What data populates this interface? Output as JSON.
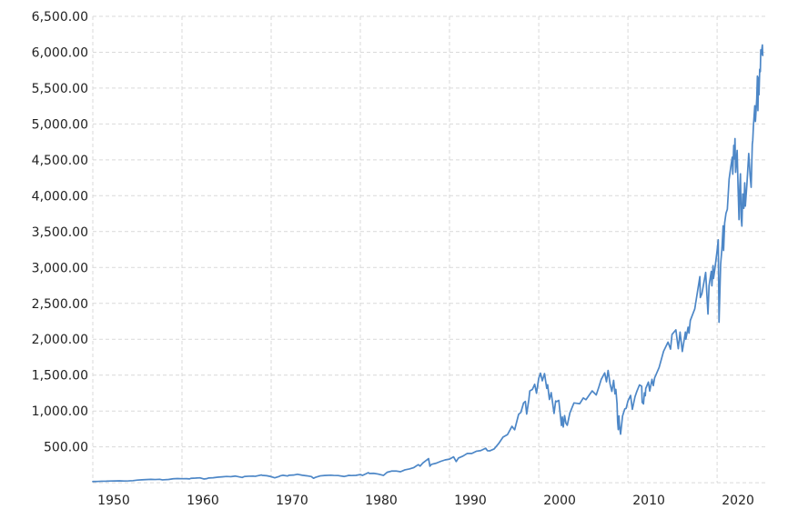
{
  "chart_data": {
    "type": "line",
    "title": "",
    "background": "#ffffff",
    "text_color": "#222222",
    "grid": {
      "color": "#d9d9d9",
      "dash": "4 3"
    },
    "series_color": "#4d87c7",
    "x_axis": {
      "range": [
        1950,
        2025.4
      ],
      "gridline_years": [
        1950,
        1960,
        1970,
        1980,
        1990,
        2000,
        2010,
        2020
      ],
      "tick_labels": [
        "1950",
        "1960",
        "1970",
        "1980",
        "1990",
        "2000",
        "2010",
        "2020"
      ]
    },
    "y_axis": {
      "range": [
        0,
        6500
      ],
      "gridline_values": [
        0,
        500,
        1000,
        1500,
        2000,
        2500,
        3000,
        3500,
        4000,
        4500,
        5000,
        5500,
        6000,
        6500
      ],
      "ticks": [
        {
          "value": 6500,
          "label": "6,500.00"
        },
        {
          "value": 6000,
          "label": "6,000.00"
        },
        {
          "value": 5500,
          "label": "5,500.00"
        },
        {
          "value": 5000,
          "label": "5,000.00"
        },
        {
          "value": 4500,
          "label": "4,500.00"
        },
        {
          "value": 4000,
          "label": "4,000.00"
        },
        {
          "value": 3500,
          "label": "3,500.00"
        },
        {
          "value": 3000,
          "label": "3,000.00"
        },
        {
          "value": 2500,
          "label": "2,500.00"
        },
        {
          "value": 2000,
          "label": "2,000.00"
        },
        {
          "value": 1500,
          "label": "1,500.00"
        },
        {
          "value": 1000,
          "label": "1,000.00"
        },
        {
          "value": 500,
          "label": "500.00"
        }
      ]
    },
    "points": [
      [
        1950.0,
        16.7
      ],
      [
        1950.5,
        17.7
      ],
      [
        1951.0,
        21.2
      ],
      [
        1951.5,
        21.8
      ],
      [
        1952.0,
        24.1
      ],
      [
        1952.5,
        25.0
      ],
      [
        1953.0,
        26.4
      ],
      [
        1953.5,
        24.3
      ],
      [
        1954.0,
        26.1
      ],
      [
        1954.5,
        29.2
      ],
      [
        1955.0,
        36.6
      ],
      [
        1955.5,
        41.0
      ],
      [
        1956.0,
        43.8
      ],
      [
        1956.5,
        47.0
      ],
      [
        1957.0,
        44.7
      ],
      [
        1957.5,
        47.9
      ],
      [
        1957.8,
        40.3
      ],
      [
        1958.0,
        41.7
      ],
      [
        1958.5,
        45.3
      ],
      [
        1959.0,
        55.4
      ],
      [
        1959.5,
        58.7
      ],
      [
        1960.0,
        55.6
      ],
      [
        1960.5,
        56.9
      ],
      [
        1960.85,
        53.4
      ],
      [
        1961.0,
        61.8
      ],
      [
        1961.5,
        64.6
      ],
      [
        1962.0,
        68.8
      ],
      [
        1962.45,
        52.3
      ],
      [
        1962.75,
        56.5
      ],
      [
        1963.0,
        66.2
      ],
      [
        1963.5,
        69.4
      ],
      [
        1964.0,
        77.0
      ],
      [
        1964.5,
        81.7
      ],
      [
        1965.0,
        87.6
      ],
      [
        1965.45,
        84.1
      ],
      [
        1966.0,
        92.9
      ],
      [
        1966.75,
        73.2
      ],
      [
        1967.0,
        86.6
      ],
      [
        1967.5,
        90.6
      ],
      [
        1968.0,
        92.2
      ],
      [
        1968.2,
        89.1
      ],
      [
        1968.9,
        108.4
      ],
      [
        1969.0,
        103.0
      ],
      [
        1969.5,
        97.7
      ],
      [
        1970.0,
        85.0
      ],
      [
        1970.4,
        69.3
      ],
      [
        1970.9,
        87.2
      ],
      [
        1971.0,
        95.9
      ],
      [
        1971.3,
        103.9
      ],
      [
        1971.85,
        94.0
      ],
      [
        1972.0,
        103.9
      ],
      [
        1972.5,
        107.1
      ],
      [
        1972.95,
        118.1
      ],
      [
        1973.5,
        104.3
      ],
      [
        1974.0,
        96.6
      ],
      [
        1974.5,
        86.0
      ],
      [
        1974.75,
        62.3
      ],
      [
        1975.0,
        77.0
      ],
      [
        1975.5,
        95.2
      ],
      [
        1976.0,
        100.9
      ],
      [
        1976.7,
        105.2
      ],
      [
        1977.0,
        102.0
      ],
      [
        1977.5,
        100.5
      ],
      [
        1978.2,
        87.0
      ],
      [
        1978.7,
        102.5
      ],
      [
        1979.0,
        99.9
      ],
      [
        1979.5,
        102.9
      ],
      [
        1980.0,
        114.2
      ],
      [
        1980.25,
        102.1
      ],
      [
        1980.9,
        140.5
      ],
      [
        1981.0,
        129.6
      ],
      [
        1981.5,
        131.2
      ],
      [
        1982.0,
        120.4
      ],
      [
        1982.6,
        102.4
      ],
      [
        1983.0,
        145.3
      ],
      [
        1983.5,
        162.6
      ],
      [
        1984.0,
        163.4
      ],
      [
        1984.5,
        153.2
      ],
      [
        1985.0,
        179.6
      ],
      [
        1985.5,
        191.8
      ],
      [
        1986.0,
        211.8
      ],
      [
        1986.5,
        252.0
      ],
      [
        1986.7,
        231.3
      ],
      [
        1987.0,
        274.1
      ],
      [
        1987.65,
        336.8
      ],
      [
        1987.8,
        230.3
      ],
      [
        1987.9,
        247.1
      ],
      [
        1988.0,
        257.1
      ],
      [
        1988.5,
        272.0
      ],
      [
        1989.0,
        297.5
      ],
      [
        1989.5,
        318.0
      ],
      [
        1990.0,
        329.1
      ],
      [
        1990.45,
        361.2
      ],
      [
        1990.75,
        295.5
      ],
      [
        1991.0,
        343.9
      ],
      [
        1991.5,
        371.2
      ],
      [
        1992.0,
        408.8
      ],
      [
        1992.5,
        408.1
      ],
      [
        1993.0,
        438.8
      ],
      [
        1993.5,
        448.1
      ],
      [
        1994.05,
        481.6
      ],
      [
        1994.25,
        445.8
      ],
      [
        1994.5,
        444.3
      ],
      [
        1995.0,
        470.4
      ],
      [
        1995.5,
        544.8
      ],
      [
        1996.0,
        636.0
      ],
      [
        1996.5,
        670.6
      ],
      [
        1997.0,
        786.2
      ],
      [
        1997.3,
        737.6
      ],
      [
        1997.75,
        954.3
      ],
      [
        1998.0,
        980.3
      ],
      [
        1998.3,
        1111.8
      ],
      [
        1998.5,
        1133.8
      ],
      [
        1998.65,
        957.3
      ],
      [
        1998.9,
        1163.6
      ],
      [
        1999.0,
        1279.6
      ],
      [
        1999.3,
        1301.8
      ],
      [
        1999.55,
        1372.7
      ],
      [
        1999.75,
        1247.4
      ],
      [
        2000.0,
        1455.2
      ],
      [
        2000.2,
        1527.5
      ],
      [
        2000.4,
        1420.6
      ],
      [
        2000.65,
        1520.8
      ],
      [
        2000.9,
        1314.9
      ],
      [
        2001.0,
        1366.0
      ],
      [
        2001.2,
        1160.3
      ],
      [
        2001.4,
        1255.8
      ],
      [
        2001.72,
        965.8
      ],
      [
        2001.9,
        1139.4
      ],
      [
        2002.0,
        1130.2
      ],
      [
        2002.25,
        1147.4
      ],
      [
        2002.55,
        797.7
      ],
      [
        2002.65,
        916.1
      ],
      [
        2002.75,
        776.8
      ],
      [
        2002.9,
        936.3
      ],
      [
        2003.05,
        829.7
      ],
      [
        2003.2,
        800.7
      ],
      [
        2003.5,
        974.5
      ],
      [
        2003.95,
        1111.9
      ],
      [
        2004.25,
        1107.3
      ],
      [
        2004.6,
        1101.7
      ],
      [
        2005.0,
        1181.3
      ],
      [
        2005.3,
        1156.9
      ],
      [
        2005.7,
        1228.8
      ],
      [
        2006.0,
        1280.1
      ],
      [
        2006.45,
        1223.7
      ],
      [
        2006.75,
        1335.9
      ],
      [
        2007.0,
        1438.2
      ],
      [
        2007.4,
        1530.6
      ],
      [
        2007.6,
        1406.7
      ],
      [
        2007.78,
        1565.2
      ],
      [
        2008.0,
        1378.6
      ],
      [
        2008.2,
        1273.4
      ],
      [
        2008.4,
        1426.6
      ],
      [
        2008.55,
        1239.5
      ],
      [
        2008.65,
        1300.7
      ],
      [
        2008.78,
        1106.4
      ],
      [
        2008.85,
        848.9
      ],
      [
        2008.92,
        741.0
      ],
      [
        2009.0,
        931.8
      ],
      [
        2009.05,
        805.2
      ],
      [
        2009.18,
        676.5
      ],
      [
        2009.4,
        929.2
      ],
      [
        2009.65,
        1028.9
      ],
      [
        2009.8,
        1036.2
      ],
      [
        2010.0,
        1136.5
      ],
      [
        2010.3,
        1217.3
      ],
      [
        2010.5,
        1022.6
      ],
      [
        2010.8,
        1199.0
      ],
      [
        2011.0,
        1271.9
      ],
      [
        2011.3,
        1363.6
      ],
      [
        2011.55,
        1345.0
      ],
      [
        2011.6,
        1119.5
      ],
      [
        2011.75,
        1099.2
      ],
      [
        2011.85,
        1253.3
      ],
      [
        2011.95,
        1211.8
      ],
      [
        2012.0,
        1312.4
      ],
      [
        2012.3,
        1403.4
      ],
      [
        2012.45,
        1278.0
      ],
      [
        2012.7,
        1440.7
      ],
      [
        2012.85,
        1353.3
      ],
      [
        2013.0,
        1462.4
      ],
      [
        2013.5,
        1606.3
      ],
      [
        2014.0,
        1831.4
      ],
      [
        2014.5,
        1960.2
      ],
      [
        2014.78,
        1862.5
      ],
      [
        2014.95,
        2067.6
      ],
      [
        2015.38,
        2130.8
      ],
      [
        2015.65,
        1867.6
      ],
      [
        2015.85,
        2099.2
      ],
      [
        2016.1,
        1829.1
      ],
      [
        2016.45,
        2099.1
      ],
      [
        2016.5,
        2001.0
      ],
      [
        2016.75,
        2168.3
      ],
      [
        2016.85,
        2085.2
      ],
      [
        2017.0,
        2262.0
      ],
      [
        2017.5,
        2423.4
      ],
      [
        2018.07,
        2872.9
      ],
      [
        2018.12,
        2581.0
      ],
      [
        2018.3,
        2634.7
      ],
      [
        2018.72,
        2930.8
      ],
      [
        2018.98,
        2351.1
      ],
      [
        2019.1,
        2744.7
      ],
      [
        2019.35,
        2945.8
      ],
      [
        2019.42,
        2744.5
      ],
      [
        2019.55,
        3025.9
      ],
      [
        2019.6,
        2847.1
      ],
      [
        2019.75,
        2977.6
      ],
      [
        2020.0,
        3230.8
      ],
      [
        2020.13,
        3386.2
      ],
      [
        2020.22,
        2237.4
      ],
      [
        2020.4,
        3044.3
      ],
      [
        2020.55,
        3271.1
      ],
      [
        2020.68,
        3580.8
      ],
      [
        2020.73,
        3236.9
      ],
      [
        2020.85,
        3621.6
      ],
      [
        2021.0,
        3756.1
      ],
      [
        2021.15,
        3811.2
      ],
      [
        2021.35,
        4232.6
      ],
      [
        2021.55,
        4411.8
      ],
      [
        2021.7,
        4537.0
      ],
      [
        2021.76,
        4300.5
      ],
      [
        2021.87,
        4701.7
      ],
      [
        2021.92,
        4513.0
      ],
      [
        2022.01,
        4796.6
      ],
      [
        2022.08,
        4326.5
      ],
      [
        2022.25,
        4631.6
      ],
      [
        2022.35,
        4131.9
      ],
      [
        2022.46,
        3666.8
      ],
      [
        2022.55,
        4140.1
      ],
      [
        2022.62,
        4305.2
      ],
      [
        2022.7,
        3693.2
      ],
      [
        2022.78,
        3577.0
      ],
      [
        2022.88,
        4026.1
      ],
      [
        2022.95,
        3852.4
      ],
      [
        2023.0,
        3824.1
      ],
      [
        2023.1,
        4179.8
      ],
      [
        2023.17,
        3855.8
      ],
      [
        2023.35,
        4169.5
      ],
      [
        2023.55,
        4589.0
      ],
      [
        2023.7,
        4288.1
      ],
      [
        2023.82,
        4117.4
      ],
      [
        2023.95,
        4719.2
      ],
      [
        2024.0,
        4769.8
      ],
      [
        2024.07,
        4958.6
      ],
      [
        2024.23,
        5254.4
      ],
      [
        2024.3,
        5035.7
      ],
      [
        2024.45,
        5354.0
      ],
      [
        2024.52,
        5667.2
      ],
      [
        2024.58,
        5186.3
      ],
      [
        2024.65,
        5648.4
      ],
      [
        2024.7,
        5408.4
      ],
      [
        2024.78,
        5762.5
      ],
      [
        2024.85,
        5728.8
      ],
      [
        2024.9,
        6032.4
      ],
      [
        2024.97,
        5970.8
      ],
      [
        2025.02,
        6040.5
      ],
      [
        2025.08,
        6101.0
      ],
      [
        2025.12,
        5954.5
      ]
    ]
  }
}
